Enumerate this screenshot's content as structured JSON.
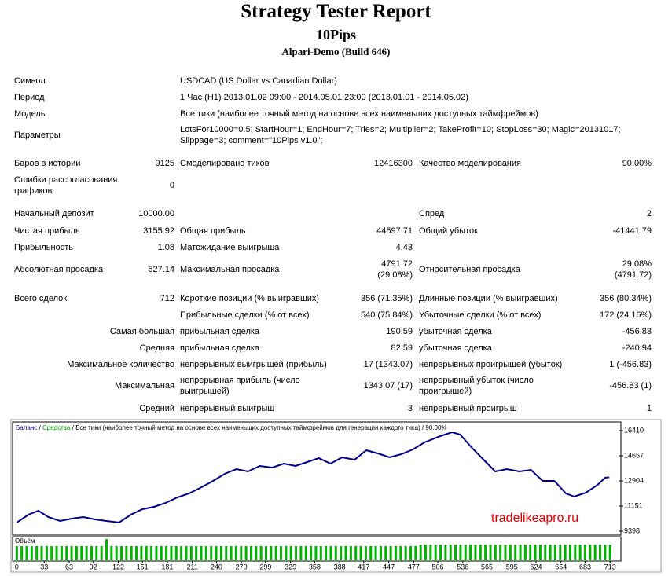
{
  "header": {
    "title": "Strategy Tester Report",
    "name": "10Pips",
    "server": "Alpari-Demo (Build 646)"
  },
  "report": {
    "rows": [
      [
        "Символ",
        null,
        "USDCAD (US Dollar vs Canadian Dollar)",
        null,
        null,
        null
      ],
      [
        "Период",
        null,
        "1 Час (H1) 2013.01.02 09:00 - 2014.05.01 23:00 (2013.01.01 - 2014.05.02)",
        null,
        null,
        null
      ],
      [
        "Модель",
        null,
        "Все тики (наиболее точный метод на основе всех наименьших доступных таймфреймов)",
        null,
        null,
        null
      ],
      [
        "Параметры",
        null,
        "LotsFor10000=0.5; StartHour=1; EndHour=7; Tries=2; Multiplier=2; TakeProfit=10; StopLoss=30; Magic=20131017; Slippage=3; comment=\"10Pips v1.0\";",
        null,
        null,
        null
      ],
      [
        "Баров в истории",
        "9125",
        "Смоделировано тиков",
        "12416300",
        "Качество моделирования",
        "90.00%"
      ],
      [
        "Ошибки рассогласования графиков",
        "0",
        null,
        null,
        null,
        null
      ],
      [
        "Начальный депозит",
        "10000.00",
        null,
        null,
        "Спред",
        "2"
      ],
      [
        "Чистая прибыль",
        "3155.92",
        "Общая прибыль",
        "44597.71",
        "Общий убыток",
        "-41441.79"
      ],
      [
        "Прибыльность",
        "1.08",
        "Матожидание выигрыша",
        "4.43",
        null,
        null
      ],
      [
        "Абсолютная просадка",
        "627.14",
        "Максимальная просадка",
        "4791.72 (29.08%)",
        "Относительная просадка",
        "29.08% (4791.72)"
      ],
      [
        "Всего сделок",
        "712",
        "Короткие позиции (% выигравших)",
        "356 (71.35%)",
        "Длинные позиции (% выигравших)",
        "356 (80.34%)"
      ],
      [
        null,
        null,
        "Прибыльные сделки (% от всех)",
        "540 (75.84%)",
        "Убыточные сделки (% от всех)",
        "172 (24.16%)"
      ],
      [
        null,
        "Самая большая",
        "прибыльная сделка",
        "190.59",
        "убыточная сделка",
        "-456.83"
      ],
      [
        null,
        "Средняя",
        "прибыльная сделка",
        "82.59",
        "убыточная сделка",
        "-240.94"
      ],
      [
        null,
        "Максимальное количество",
        "непрерывных выигрышей (прибыль)",
        "17 (1343.07)",
        "непрерывных проигрышей (убыток)",
        "1 (-456.83)"
      ],
      [
        null,
        "Максимальная",
        "непрерывная прибыль (число выигрышей)",
        "1343.07 (17)",
        "непрерывный убыток (число проигрышей)",
        "-456.83 (1)"
      ],
      [
        null,
        "Средний",
        "непрерывный выигрыш",
        "3",
        "непрерывный проигрыш",
        "1"
      ]
    ]
  },
  "chart_data": {
    "type": "line",
    "separator": "/",
    "caption": "Все тики (наиболее точный метод на основе всех наименьших доступных таймфреймов для генерации каждого тика) / 90.00%",
    "x": [
      0,
      14,
      26,
      38,
      52,
      66,
      80,
      94,
      108,
      123,
      137,
      151,
      165,
      179,
      193,
      207,
      222,
      236,
      250,
      264,
      278,
      292,
      307,
      321,
      335,
      349,
      363,
      377,
      391,
      406,
      420,
      434,
      448,
      462,
      476,
      490,
      509,
      523,
      533,
      547,
      561,
      575,
      589,
      604,
      618,
      632,
      646,
      660,
      670,
      684,
      698,
      707,
      712
    ],
    "series": [
      {
        "name": "Баланс",
        "color": "#00008b",
        "values": [
          10000,
          10549,
          10822,
          10384,
          10110,
          10275,
          10384,
          10220,
          10110,
          10000,
          10549,
          10932,
          11096,
          11370,
          11754,
          12028,
          12466,
          12904,
          13397,
          13726,
          13561,
          13945,
          13835,
          14109,
          13945,
          14219,
          14493,
          14109,
          14548,
          14383,
          15040,
          14821,
          14548,
          14767,
          15095,
          15588,
          16027,
          16300,
          16136,
          15205,
          14383,
          13561,
          13726,
          13561,
          13671,
          12904,
          12904,
          12028,
          11809,
          12083,
          12630,
          13123,
          13156
        ]
      }
    ],
    "legend_items": [
      {
        "name": "Средства",
        "color": "#00a000"
      }
    ],
    "xlim": [
      -5,
      726
    ],
    "ylim": [
      9124,
      17013
    ],
    "xticks": [
      0,
      33,
      63,
      92,
      122,
      151,
      181,
      211,
      240,
      270,
      299,
      329,
      358,
      388,
      417,
      447,
      477,
      506,
      536,
      565,
      595,
      624,
      654,
      683,
      713
    ],
    "yticks": [
      9398,
      11151,
      12904,
      14657,
      16410
    ],
    "annotation": "tradelikeapro.ru",
    "volume": {
      "label": "Объём",
      "color": "#00b400",
      "values": [
        1,
        1,
        1,
        1,
        1,
        1,
        1,
        1,
        1,
        1,
        1,
        1,
        1,
        1,
        1,
        1,
        1,
        1,
        1.5,
        1,
        1,
        1,
        1,
        1,
        1,
        1,
        1,
        1,
        1,
        1,
        1,
        1,
        1,
        1,
        1,
        1,
        1,
        1,
        1,
        1,
        1,
        1,
        1,
        1,
        1,
        1,
        1,
        1,
        1,
        1,
        1,
        1,
        1,
        1,
        1,
        1,
        1,
        1,
        1,
        1,
        1,
        1,
        1,
        1,
        1,
        1,
        1,
        1,
        1,
        1,
        1,
        1,
        1,
        1,
        1,
        1,
        1,
        1,
        1,
        1,
        1,
        1.1,
        1.1,
        1.1,
        1.1,
        1.1,
        1.1,
        1.1,
        1.1,
        1.1,
        1.1,
        1.1,
        1.1,
        1.1,
        1.1,
        1.1,
        1.1,
        1.1,
        1.1,
        1.1,
        1.1,
        1.1,
        1.1,
        1.1,
        1.1,
        1.1,
        1.1,
        1.1,
        1.1,
        1.1,
        1.1,
        1.1,
        1.1,
        1.1,
        1.1,
        1.1,
        1.1,
        1.1,
        1.1,
        1.1
      ]
    }
  }
}
